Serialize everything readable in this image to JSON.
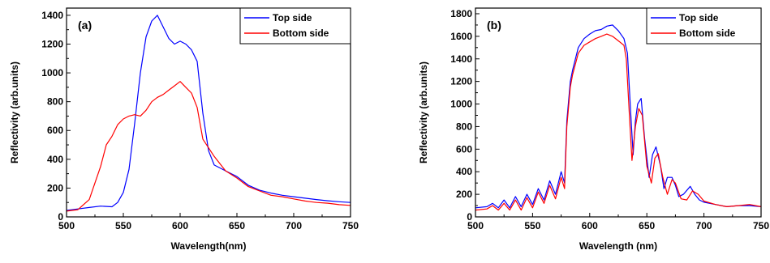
{
  "chart_data": [
    {
      "type": "line",
      "panel_label": "(a)",
      "xlabel": "Wavelength(nm)",
      "ylabel": "Reflectivity (arb.units)",
      "xlim": [
        500,
        750
      ],
      "ylim": [
        0,
        1450
      ],
      "xticks": [
        500,
        550,
        600,
        650,
        700,
        750
      ],
      "yticks": [
        0,
        200,
        400,
        600,
        800,
        1000,
        1200,
        1400
      ],
      "legend_position": "top-right",
      "series": [
        {
          "name": "Top side",
          "color": "#0000ff",
          "x": [
            500,
            510,
            520,
            530,
            540,
            545,
            550,
            555,
            560,
            565,
            570,
            575,
            580,
            585,
            590,
            595,
            600,
            605,
            610,
            615,
            620,
            625,
            630,
            640,
            650,
            660,
            670,
            680,
            690,
            700,
            710,
            720,
            730,
            740,
            750
          ],
          "y": [
            45,
            55,
            65,
            75,
            70,
            100,
            170,
            330,
            650,
            1000,
            1250,
            1360,
            1400,
            1320,
            1240,
            1200,
            1220,
            1200,
            1160,
            1080,
            720,
            460,
            360,
            320,
            280,
            220,
            185,
            165,
            150,
            140,
            130,
            120,
            112,
            105,
            100
          ]
        },
        {
          "name": "Bottom side",
          "color": "#ff0000",
          "x": [
            500,
            510,
            520,
            530,
            535,
            540,
            545,
            550,
            555,
            560,
            565,
            570,
            575,
            580,
            585,
            590,
            595,
            600,
            605,
            610,
            615,
            620,
            630,
            640,
            650,
            660,
            670,
            680,
            690,
            700,
            710,
            720,
            730,
            740,
            750
          ],
          "y": [
            40,
            50,
            120,
            350,
            500,
            560,
            640,
            680,
            700,
            710,
            700,
            740,
            800,
            830,
            850,
            880,
            910,
            940,
            900,
            860,
            760,
            540,
            420,
            320,
            270,
            210,
            180,
            150,
            140,
            125,
            110,
            100,
            95,
            85,
            80
          ]
        }
      ]
    },
    {
      "type": "line",
      "panel_label": "(b)",
      "xlabel": "Wavelength (nm)",
      "ylabel": "Reflectivity (arb.units)",
      "xlim": [
        500,
        750
      ],
      "ylim": [
        0,
        1850
      ],
      "xticks": [
        500,
        550,
        600,
        650,
        700,
        750
      ],
      "yticks": [
        0,
        200,
        400,
        600,
        800,
        1000,
        1200,
        1400,
        1600,
        1800
      ],
      "legend_position": "top-right",
      "series": [
        {
          "name": "Top side",
          "color": "#0000ff",
          "x": [
            500,
            510,
            515,
            520,
            525,
            530,
            535,
            540,
            545,
            550,
            555,
            560,
            565,
            570,
            575,
            578,
            580,
            583,
            585,
            590,
            595,
            600,
            605,
            610,
            615,
            620,
            625,
            630,
            633,
            636,
            638,
            640,
            642,
            645,
            648,
            652,
            655,
            658,
            662,
            665,
            668,
            672,
            675,
            678,
            682,
            688,
            692,
            696,
            700,
            710,
            720,
            730,
            740,
            750
          ],
          "y": [
            80,
            90,
            120,
            80,
            150,
            80,
            180,
            90,
            200,
            110,
            250,
            150,
            320,
            200,
            400,
            300,
            850,
            1200,
            1300,
            1500,
            1580,
            1620,
            1650,
            1660,
            1690,
            1700,
            1650,
            1580,
            1450,
            900,
            550,
            850,
            1000,
            1050,
            700,
            350,
            550,
            620,
            450,
            250,
            350,
            350,
            280,
            180,
            200,
            270,
            200,
            150,
            130,
            110,
            90,
            100,
            100,
            90
          ]
        },
        {
          "name": "Bottom side",
          "color": "#ff0000",
          "x": [
            500,
            510,
            515,
            520,
            525,
            530,
            535,
            540,
            545,
            550,
            555,
            560,
            565,
            570,
            575,
            578,
            580,
            583,
            585,
            590,
            595,
            600,
            605,
            610,
            615,
            620,
            625,
            630,
            632,
            635,
            637,
            640,
            643,
            646,
            650,
            654,
            657,
            660,
            664,
            668,
            672,
            675,
            680,
            685,
            690,
            695,
            700,
            710,
            720,
            730,
            740,
            750
          ],
          "y": [
            60,
            70,
            100,
            60,
            120,
            60,
            150,
            60,
            170,
            80,
            220,
            120,
            280,
            160,
            350,
            250,
            800,
            1150,
            1260,
            1450,
            1520,
            1550,
            1580,
            1600,
            1620,
            1600,
            1560,
            1520,
            1400,
            850,
            500,
            800,
            960,
            900,
            450,
            300,
            520,
            560,
            350,
            200,
            330,
            300,
            160,
            150,
            230,
            200,
            140,
            110,
            90,
            100,
            110,
            90
          ]
        }
      ]
    }
  ]
}
